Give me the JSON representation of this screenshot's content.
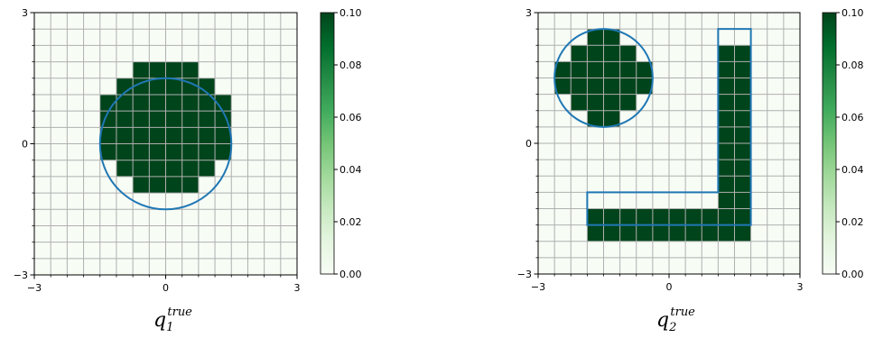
{
  "chart_data": [
    {
      "type": "heatmap",
      "caption": {
        "symbol": "q",
        "subscript": "1",
        "superscript": "true"
      },
      "xlim": [
        -3,
        3
      ],
      "ylim": [
        -3,
        3
      ],
      "x_tick_labels": [
        "−3",
        "0",
        "3"
      ],
      "y_tick_labels": [
        "−3",
        "0",
        "3"
      ],
      "grid_cells": 16,
      "grid": true,
      "shapes": [
        {
          "kind": "circle",
          "center": [
            0,
            0
          ],
          "radius": 1.5
        }
      ],
      "filled_cells": [
        {
          "ix": 6,
          "iy": 12
        },
        {
          "ix": 7,
          "iy": 12
        },
        {
          "ix": 8,
          "iy": 12
        },
        {
          "ix": 9,
          "iy": 12
        },
        {
          "ix": 5,
          "iy": 11
        },
        {
          "ix": 6,
          "iy": 11
        },
        {
          "ix": 7,
          "iy": 11
        },
        {
          "ix": 8,
          "iy": 11
        },
        {
          "ix": 9,
          "iy": 11
        },
        {
          "ix": 10,
          "iy": 11
        },
        {
          "ix": 4,
          "iy": 10
        },
        {
          "ix": 5,
          "iy": 10
        },
        {
          "ix": 6,
          "iy": 10
        },
        {
          "ix": 7,
          "iy": 10
        },
        {
          "ix": 8,
          "iy": 10
        },
        {
          "ix": 9,
          "iy": 10
        },
        {
          "ix": 10,
          "iy": 10
        },
        {
          "ix": 11,
          "iy": 10
        },
        {
          "ix": 4,
          "iy": 9
        },
        {
          "ix": 5,
          "iy": 9
        },
        {
          "ix": 6,
          "iy": 9
        },
        {
          "ix": 7,
          "iy": 9
        },
        {
          "ix": 8,
          "iy": 9
        },
        {
          "ix": 9,
          "iy": 9
        },
        {
          "ix": 10,
          "iy": 9
        },
        {
          "ix": 11,
          "iy": 9
        },
        {
          "ix": 4,
          "iy": 8
        },
        {
          "ix": 5,
          "iy": 8
        },
        {
          "ix": 6,
          "iy": 8
        },
        {
          "ix": 7,
          "iy": 8
        },
        {
          "ix": 8,
          "iy": 8
        },
        {
          "ix": 9,
          "iy": 8
        },
        {
          "ix": 10,
          "iy": 8
        },
        {
          "ix": 11,
          "iy": 8
        },
        {
          "ix": 4,
          "iy": 7
        },
        {
          "ix": 5,
          "iy": 7
        },
        {
          "ix": 6,
          "iy": 7
        },
        {
          "ix": 7,
          "iy": 7
        },
        {
          "ix": 8,
          "iy": 7
        },
        {
          "ix": 9,
          "iy": 7
        },
        {
          "ix": 10,
          "iy": 7
        },
        {
          "ix": 11,
          "iy": 7
        },
        {
          "ix": 5,
          "iy": 6
        },
        {
          "ix": 6,
          "iy": 6
        },
        {
          "ix": 7,
          "iy": 6
        },
        {
          "ix": 8,
          "iy": 6
        },
        {
          "ix": 9,
          "iy": 6
        },
        {
          "ix": 10,
          "iy": 6
        },
        {
          "ix": 6,
          "iy": 5
        },
        {
          "ix": 7,
          "iy": 5
        },
        {
          "ix": 8,
          "iy": 5
        },
        {
          "ix": 9,
          "iy": 5
        }
      ],
      "filled_value": 0.1,
      "empty_value": 0.0,
      "colorbar": {
        "range": [
          0.0,
          0.1
        ],
        "tick_labels": [
          "0.00",
          "0.02",
          "0.04",
          "0.06",
          "0.08",
          "0.10"
        ],
        "colors": [
          "#f7fcf5",
          "#e5f5e0",
          "#c7e9c0",
          "#a1d99b",
          "#74c476",
          "#41ab5d",
          "#238b45",
          "#006d2c",
          "#00441b"
        ]
      }
    },
    {
      "type": "heatmap",
      "caption": {
        "symbol": "q",
        "subscript": "2",
        "superscript": "true"
      },
      "xlim": [
        -3,
        3
      ],
      "ylim": [
        -3,
        3
      ],
      "x_tick_labels": [
        "−3",
        "0",
        "3"
      ],
      "y_tick_labels": [
        "−3",
        "0",
        "3"
      ],
      "grid_cells": 16,
      "grid": true,
      "shapes": [
        {
          "kind": "circle",
          "center": [
            -1.5,
            1.5
          ],
          "radius": 1.125
        },
        {
          "kind": "polygon",
          "points": [
            [
              1.125,
              2.625
            ],
            [
              1.875,
              2.625
            ],
            [
              1.875,
              -1.875
            ],
            [
              -1.875,
              -1.875
            ],
            [
              -1.875,
              -1.125
            ],
            [
              1.125,
              -1.125
            ]
          ]
        }
      ],
      "filled_cells": [
        {
          "ix": 3,
          "iy": 14
        },
        {
          "ix": 4,
          "iy": 14
        },
        {
          "ix": 2,
          "iy": 13
        },
        {
          "ix": 3,
          "iy": 13
        },
        {
          "ix": 4,
          "iy": 13
        },
        {
          "ix": 5,
          "iy": 13
        },
        {
          "ix": 1,
          "iy": 12
        },
        {
          "ix": 2,
          "iy": 12
        },
        {
          "ix": 3,
          "iy": 12
        },
        {
          "ix": 4,
          "iy": 12
        },
        {
          "ix": 5,
          "iy": 12
        },
        {
          "ix": 6,
          "iy": 12
        },
        {
          "ix": 1,
          "iy": 11
        },
        {
          "ix": 2,
          "iy": 11
        },
        {
          "ix": 3,
          "iy": 11
        },
        {
          "ix": 4,
          "iy": 11
        },
        {
          "ix": 5,
          "iy": 11
        },
        {
          "ix": 6,
          "iy": 11
        },
        {
          "ix": 2,
          "iy": 10
        },
        {
          "ix": 3,
          "iy": 10
        },
        {
          "ix": 4,
          "iy": 10
        },
        {
          "ix": 5,
          "iy": 10
        },
        {
          "ix": 3,
          "iy": 9
        },
        {
          "ix": 4,
          "iy": 9
        },
        {
          "ix": 11,
          "iy": 13
        },
        {
          "ix": 12,
          "iy": 13
        },
        {
          "ix": 11,
          "iy": 12
        },
        {
          "ix": 12,
          "iy": 12
        },
        {
          "ix": 11,
          "iy": 11
        },
        {
          "ix": 12,
          "iy": 11
        },
        {
          "ix": 11,
          "iy": 10
        },
        {
          "ix": 12,
          "iy": 10
        },
        {
          "ix": 11,
          "iy": 9
        },
        {
          "ix": 12,
          "iy": 9
        },
        {
          "ix": 11,
          "iy": 8
        },
        {
          "ix": 12,
          "iy": 8
        },
        {
          "ix": 11,
          "iy": 7
        },
        {
          "ix": 12,
          "iy": 7
        },
        {
          "ix": 11,
          "iy": 6
        },
        {
          "ix": 12,
          "iy": 6
        },
        {
          "ix": 11,
          "iy": 5
        },
        {
          "ix": 12,
          "iy": 5
        },
        {
          "ix": 11,
          "iy": 4
        },
        {
          "ix": 12,
          "iy": 4
        },
        {
          "ix": 3,
          "iy": 3
        },
        {
          "ix": 4,
          "iy": 3
        },
        {
          "ix": 5,
          "iy": 3
        },
        {
          "ix": 6,
          "iy": 3
        },
        {
          "ix": 7,
          "iy": 3
        },
        {
          "ix": 8,
          "iy": 3
        },
        {
          "ix": 9,
          "iy": 3
        },
        {
          "ix": 10,
          "iy": 3
        },
        {
          "ix": 11,
          "iy": 3
        },
        {
          "ix": 12,
          "iy": 3
        },
        {
          "ix": 3,
          "iy": 2
        },
        {
          "ix": 4,
          "iy": 2
        },
        {
          "ix": 5,
          "iy": 2
        },
        {
          "ix": 6,
          "iy": 2
        },
        {
          "ix": 7,
          "iy": 2
        },
        {
          "ix": 8,
          "iy": 2
        },
        {
          "ix": 9,
          "iy": 2
        },
        {
          "ix": 10,
          "iy": 2
        },
        {
          "ix": 11,
          "iy": 2
        },
        {
          "ix": 12,
          "iy": 2
        }
      ],
      "filled_value": 0.1,
      "empty_value": 0.0,
      "colorbar": {
        "range": [
          0.0,
          0.1
        ],
        "tick_labels": [
          "0.00",
          "0.02",
          "0.04",
          "0.06",
          "0.08",
          "0.10"
        ],
        "colors": [
          "#f7fcf5",
          "#e5f5e0",
          "#c7e9c0",
          "#a1d99b",
          "#74c476",
          "#41ab5d",
          "#238b45",
          "#006d2c",
          "#00441b"
        ]
      }
    }
  ],
  "colors": {
    "filled": "#00441b",
    "empty": "#f7fcf5",
    "grid": "#b0b0b0",
    "outline": "#1f77b4"
  }
}
